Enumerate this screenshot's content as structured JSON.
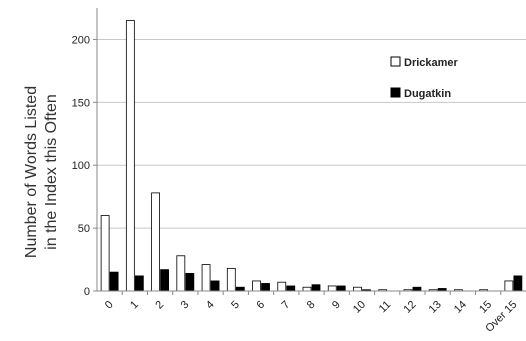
{
  "chart_data": {
    "type": "bar",
    "title": "",
    "xlabel": "",
    "ylabel_lines": [
      "Number of Words Listed",
      "in the Index this Often"
    ],
    "categories": [
      "0",
      "1",
      "2",
      "3",
      "4",
      "5",
      "6",
      "7",
      "8",
      "9",
      "10",
      "11",
      "12",
      "13",
      "14",
      "15",
      "Over 15"
    ],
    "series": [
      {
        "name": "Drickamer",
        "color": "#ffffff",
        "stroke": "#000000",
        "values": [
          60,
          215,
          78,
          28,
          21,
          18,
          8,
          7,
          3,
          4,
          3,
          1,
          1,
          1,
          1,
          1,
          8
        ]
      },
      {
        "name": "Dugatkin",
        "color": "#000000",
        "stroke": "#000000",
        "values": [
          15,
          12,
          17,
          14,
          8,
          3,
          6,
          4,
          5,
          4,
          1,
          0,
          3,
          2,
          0,
          0,
          12
        ]
      }
    ],
    "ylim": [
      0,
      225
    ],
    "yticks": [
      0,
      50,
      100,
      150,
      200
    ],
    "grid": true,
    "legend_position": "top-right"
  }
}
